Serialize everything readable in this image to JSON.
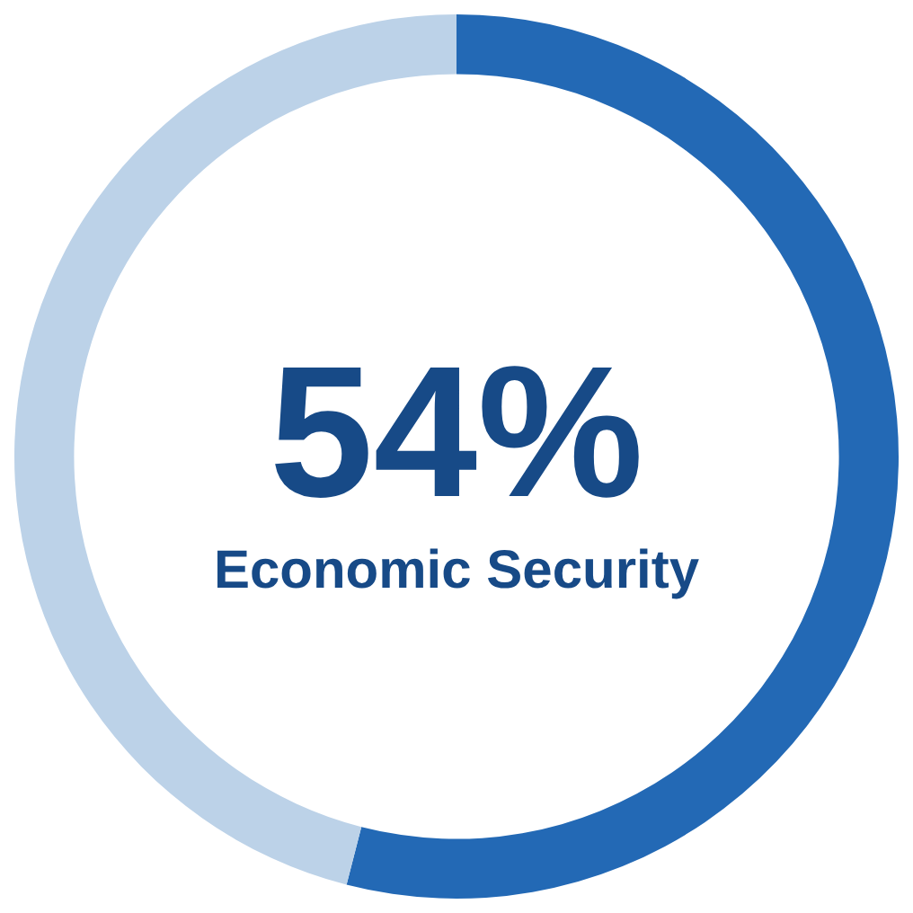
{
  "chart_data": {
    "type": "donut",
    "categories": [
      "Economic Security",
      null
    ],
    "values": [
      54,
      46
    ],
    "colors": [
      "#2369b5",
      "#bcd2e8"
    ],
    "value_labels": [
      "54%",
      null
    ]
  }
}
